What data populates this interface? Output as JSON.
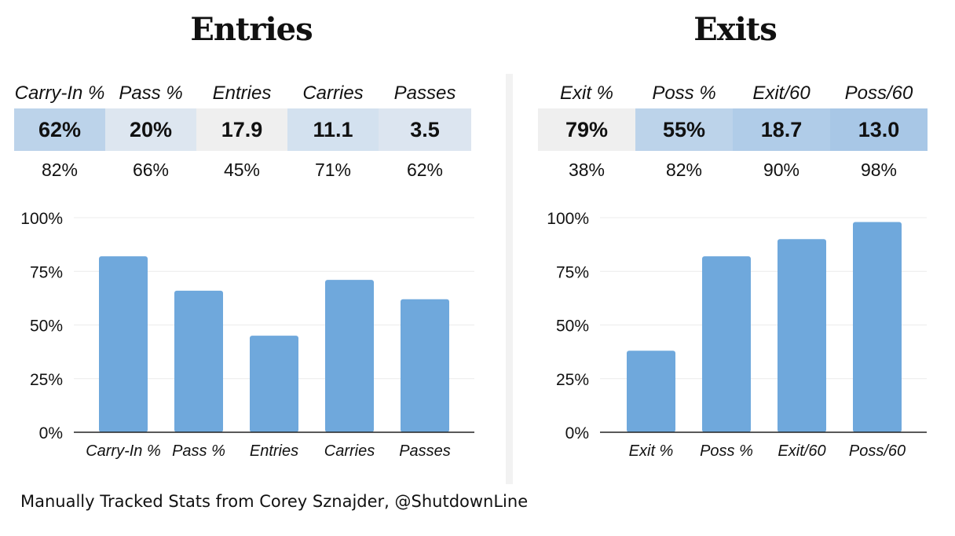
{
  "entries": {
    "title": "Entries",
    "stats": [
      {
        "label": "Carry-In %",
        "value": "62%",
        "percentile": "82%",
        "color": "#bcd3ea"
      },
      {
        "label": "Pass %",
        "value": "20%",
        "percentile": "66%",
        "color": "#dde6f0"
      },
      {
        "label": "Entries",
        "value": "17.9",
        "percentile": "45%",
        "color": "#efefef"
      },
      {
        "label": "Carries",
        "value": "11.1",
        "percentile": "71%",
        "color": "#d3e1ef"
      },
      {
        "label": "Passes",
        "value": "3.5",
        "percentile": "62%",
        "color": "#dce5f0"
      }
    ]
  },
  "exits": {
    "title": "Exits",
    "stats": [
      {
        "label": "Exit %",
        "value": "79%",
        "percentile": "38%",
        "color": "#efefef"
      },
      {
        "label": "Poss %",
        "value": "55%",
        "percentile": "82%",
        "color": "#bcd3ea"
      },
      {
        "label": "Exit/60",
        "value": "18.7",
        "percentile": "90%",
        "color": "#b0cce8"
      },
      {
        "label": "Poss/60",
        "value": "13.0",
        "percentile": "98%",
        "color": "#a8c7e6"
      }
    ]
  },
  "chart_data": [
    {
      "type": "bar",
      "categories": [
        "Carry-In %",
        "Pass %",
        "Entries",
        "Carries",
        "Passes"
      ],
      "values": [
        82,
        66,
        45,
        71,
        62
      ],
      "yticks": [
        "0%",
        "25%",
        "50%",
        "75%",
        "100%"
      ],
      "ylim": [
        0,
        100
      ],
      "bar_color": "#6fa8dc",
      "grid": true
    },
    {
      "type": "bar",
      "categories": [
        "Exit %",
        "Poss %",
        "Exit/60",
        "Poss/60"
      ],
      "values": [
        38,
        82,
        90,
        98
      ],
      "yticks": [
        "0%",
        "25%",
        "50%",
        "75%",
        "100%"
      ],
      "ylim": [
        0,
        100
      ],
      "bar_color": "#6fa8dc",
      "grid": true
    }
  ],
  "footer": "Manually Tracked Stats from Corey Sznajder, @ShutdownLine"
}
